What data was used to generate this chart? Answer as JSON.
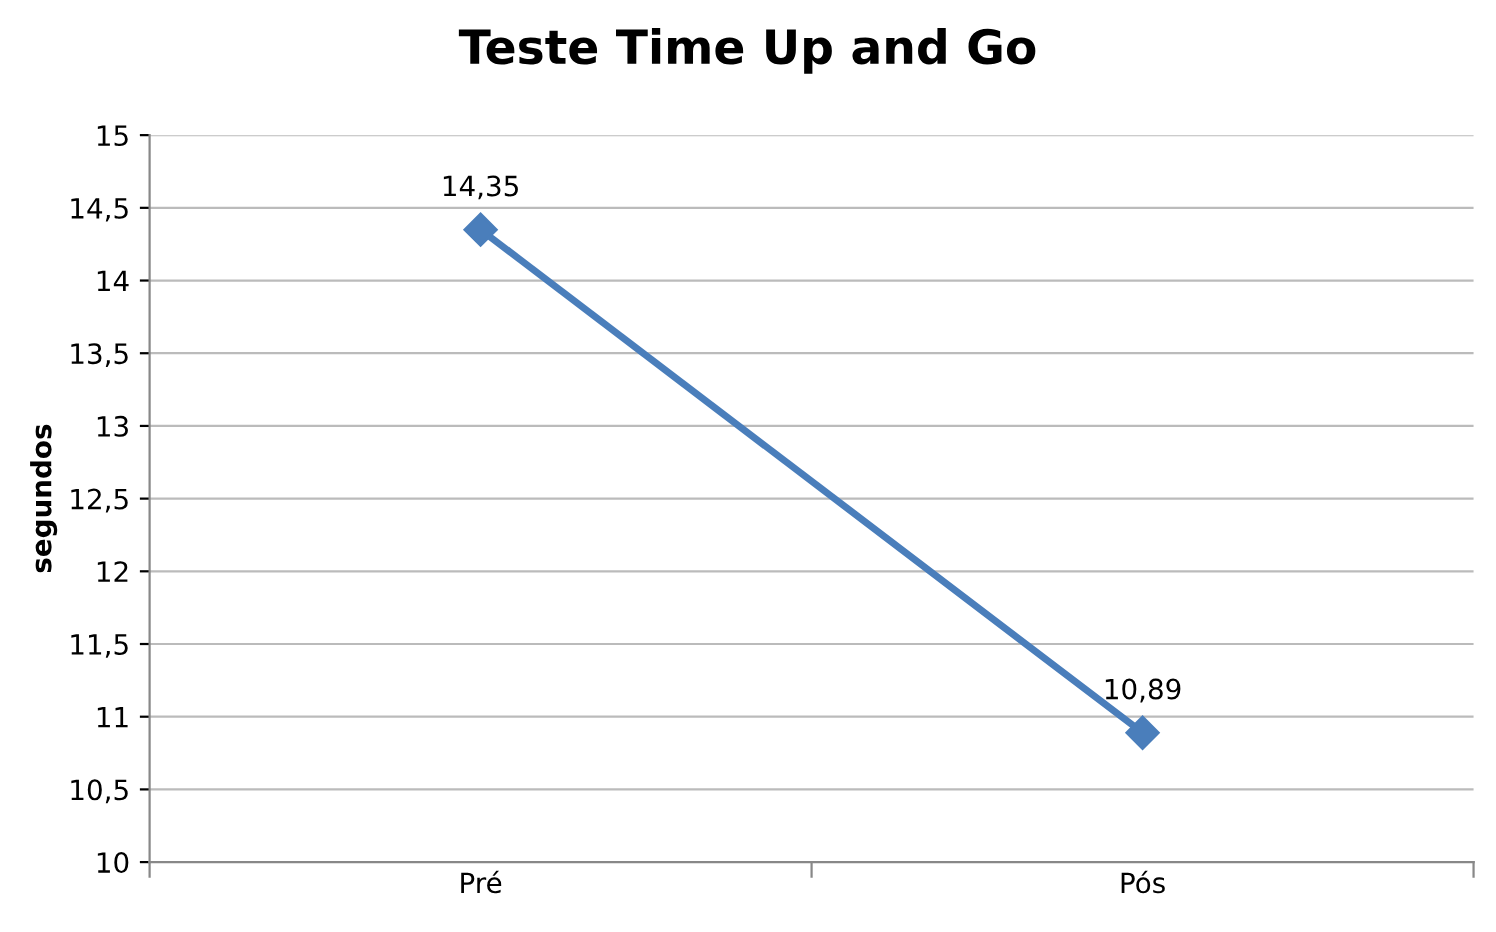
{
  "chart_data": {
    "type": "line",
    "title": "Teste Time Up and Go",
    "ylabel": "segundos",
    "categories": [
      "Pré",
      "Pós"
    ],
    "series": [
      {
        "color": "#4a7ebb",
        "values": [
          14.35,
          10.89
        ],
        "value_labels": [
          "14,35",
          "10,89"
        ]
      }
    ],
    "ylim": [
      10,
      15
    ],
    "yticks": [
      10,
      {
        "value": 10.5,
        "label": "10,5"
      },
      11,
      {
        "value": 11.5,
        "label": "11,5"
      },
      12,
      {
        "value": 12.5,
        "label": "12,5"
      },
      13,
      {
        "value": 13.5,
        "label": "13,5"
      },
      14,
      {
        "value": 14.5,
        "label": "14,5"
      },
      15
    ],
    "grid": "y",
    "marker": "diamond",
    "line_style": "solid",
    "legend": false
  }
}
